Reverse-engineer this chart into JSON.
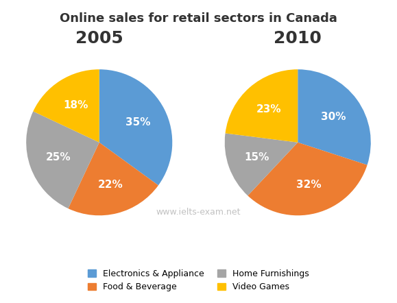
{
  "title": "Online sales for retail sectors in Canada",
  "title_fontsize": 13,
  "title_color": "#333333",
  "year_2005_label": "2005",
  "year_2010_label": "2010",
  "year_fontsize": 18,
  "year_color": "#333333",
  "categories": [
    "Electronics & Appliance",
    "Food & Beverage",
    "Home Furnishings",
    "Video Games"
  ],
  "colors": [
    "#5B9BD5",
    "#ED7D31",
    "#A5A5A5",
    "#FFC000"
  ],
  "values_2005": [
    35,
    22,
    25,
    18
  ],
  "values_2010": [
    30,
    32,
    15,
    23
  ],
  "labels_2005": [
    "35%",
    "22%",
    "25%",
    "18%"
  ],
  "labels_2010": [
    "30%",
    "32%",
    "15%",
    "23%"
  ],
  "startangle_2005": 90,
  "startangle_2010": 90,
  "watermark": "www.ielts-exam.net",
  "watermark_color": "#BBBBBB",
  "watermark_fontsize": 9,
  "legend_fontsize": 9,
  "pct_fontsize": 11,
  "pct_color": "white",
  "background_color": "#FFFFFF"
}
